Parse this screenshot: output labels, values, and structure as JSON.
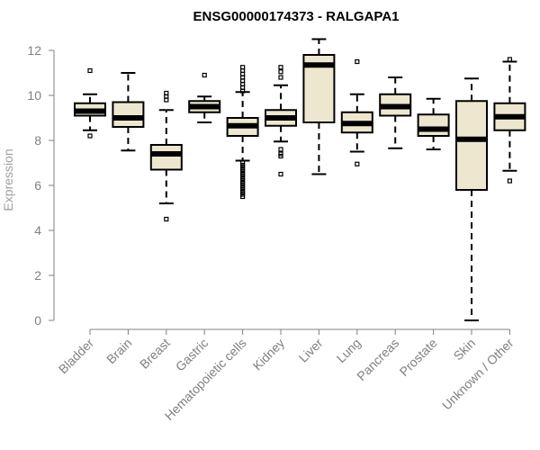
{
  "chart_data": {
    "type": "boxplot",
    "title": "ENSG00000174373 - RALGAPA1",
    "xlabel": "",
    "ylabel": "Expression",
    "ylim": [
      0,
      12.5
    ],
    "yticks": [
      0,
      2,
      4,
      6,
      8,
      10,
      12
    ],
    "box_fill": "#ede7d0",
    "categories": [
      "Bladder",
      "Brain",
      "Breast",
      "Gastric",
      "Hematopoietic cells",
      "Kidney",
      "Liver",
      "Lung",
      "Pancreas",
      "Prostate",
      "Skin",
      "Unknown / Other"
    ],
    "boxes": [
      {
        "min": 8.45,
        "q1": 9.1,
        "median": 9.3,
        "q3": 9.65,
        "max": 10.05,
        "outliers": [
          11.1,
          8.2
        ]
      },
      {
        "min": 7.55,
        "q1": 8.6,
        "median": 9.0,
        "q3": 9.7,
        "max": 11.0,
        "outliers": []
      },
      {
        "min": 5.2,
        "q1": 6.7,
        "median": 7.4,
        "q3": 7.8,
        "max": 9.35,
        "outliers": [
          10.1,
          9.95,
          9.8,
          4.5
        ]
      },
      {
        "min": 8.8,
        "q1": 9.25,
        "median": 9.5,
        "q3": 9.75,
        "max": 9.95,
        "outliers": [
          10.9
        ]
      },
      {
        "min": 7.1,
        "q1": 8.2,
        "median": 8.65,
        "q3": 9.0,
        "max": 10.15,
        "outliers": [
          11.25,
          11.1,
          10.95,
          10.8,
          10.65,
          10.5,
          10.35,
          10.2,
          7.0,
          6.9,
          6.8,
          6.7,
          6.6,
          6.5,
          6.4,
          6.3,
          6.2,
          6.1,
          6.0,
          5.9,
          5.8,
          5.7,
          5.6,
          5.5
        ]
      },
      {
        "min": 7.95,
        "q1": 8.65,
        "median": 9.0,
        "q3": 9.35,
        "max": 10.45,
        "outliers": [
          11.25,
          11.05,
          10.8,
          7.6,
          7.4,
          7.3,
          6.5
        ]
      },
      {
        "min": 6.5,
        "q1": 8.8,
        "median": 11.35,
        "q3": 11.8,
        "max": 12.5,
        "outliers": []
      },
      {
        "min": 7.5,
        "q1": 8.35,
        "median": 8.75,
        "q3": 9.25,
        "max": 10.05,
        "outliers": [
          11.5,
          6.95
        ]
      },
      {
        "min": 7.65,
        "q1": 9.1,
        "median": 9.5,
        "q3": 10.05,
        "max": 10.8,
        "outliers": []
      },
      {
        "min": 7.6,
        "q1": 8.2,
        "median": 8.5,
        "q3": 9.15,
        "max": 9.85,
        "outliers": []
      },
      {
        "min": 0.0,
        "q1": 5.8,
        "median": 8.05,
        "q3": 9.75,
        "max": 10.75,
        "outliers": []
      },
      {
        "min": 6.65,
        "q1": 8.45,
        "median": 9.05,
        "q3": 9.65,
        "max": 11.5,
        "outliers": [
          11.6,
          6.2
        ]
      }
    ]
  }
}
